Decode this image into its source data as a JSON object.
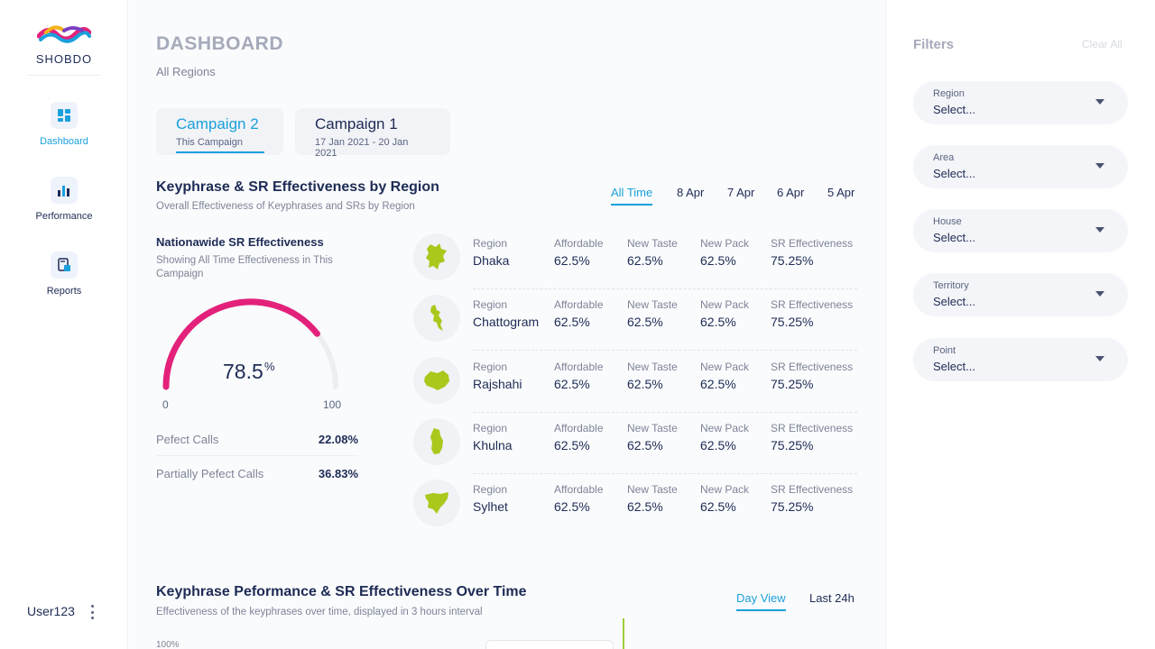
{
  "brand": {
    "name": "SHOBDO"
  },
  "sidebar": {
    "items": [
      {
        "label": "Dashboard"
      },
      {
        "label": "Performance"
      },
      {
        "label": "Reports"
      }
    ],
    "user": "User123"
  },
  "header": {
    "title": "DASHBOARD",
    "subtitle": "All Regions"
  },
  "campaigns": [
    {
      "title": "Campaign 2",
      "sub": "This Campaign"
    },
    {
      "title": "Campaign 1",
      "sub": "17 Jan 2021 - 20 Jan 2021"
    }
  ],
  "section1": {
    "title": "Keyphrase & SR Effectiveness by Region",
    "subtitle": "Overall Effectiveness of Keyphrases and SRs by Region",
    "time_filters": [
      "All Time",
      "8 Apr",
      "7 Apr",
      "6 Apr",
      "5 Apr"
    ]
  },
  "nationwide": {
    "title": "Nationawide SR Effectiveness",
    "subtitle": "Showing All Time Effectiveness in This Campaign",
    "gauge_value": "78.5",
    "gauge_unit": "%",
    "gauge_fraction": 0.785,
    "min": "0",
    "max": "100",
    "stats": [
      {
        "label": "Pefect Calls",
        "value": "22.08%"
      },
      {
        "label": "Partially Pefect Calls",
        "value": "36.83%"
      }
    ]
  },
  "region_headers": {
    "region": "Region",
    "affordable": "Affordable",
    "new_taste": "New Taste",
    "new_pack": "New Pack",
    "sr": "SR Effectiveness"
  },
  "regions": [
    {
      "name": "Dhaka",
      "affordable": "62.5%",
      "new_taste": "62.5%",
      "new_pack": "62.5%",
      "sr": "75.25%"
    },
    {
      "name": "Chattogram",
      "affordable": "62.5%",
      "new_taste": "62.5%",
      "new_pack": "62.5%",
      "sr": "75.25%"
    },
    {
      "name": "Rajshahi",
      "affordable": "62.5%",
      "new_taste": "62.5%",
      "new_pack": "62.5%",
      "sr": "75.25%"
    },
    {
      "name": "Khulna",
      "affordable": "62.5%",
      "new_taste": "62.5%",
      "new_pack": "62.5%",
      "sr": "75.25%"
    },
    {
      "name": "Sylhet",
      "affordable": "62.5%",
      "new_taste": "62.5%",
      "new_pack": "62.5%",
      "sr": "75.25%"
    }
  ],
  "section2": {
    "title": "Keyphrase Peformance & SR Effectiveness Over Time",
    "subtitle": "Effectiveness of the keyphrases over time, displayed in 3 hours interval",
    "views": [
      "Day View",
      "Last 24h"
    ],
    "y_label": "100%"
  },
  "filters": {
    "title": "Filters",
    "clear": "Clear All",
    "selects": [
      {
        "label": "Region",
        "value": "Select..."
      },
      {
        "label": "Area",
        "value": "Select..."
      },
      {
        "label": "House",
        "value": "Select..."
      },
      {
        "label": "Territory",
        "value": "Select..."
      },
      {
        "label": "Point",
        "value": "Select..."
      }
    ]
  },
  "colors": {
    "accent": "#1aa0dc",
    "gauge": "#e3217b",
    "map_green": "#a9c81b",
    "text": "#1d2b55"
  }
}
